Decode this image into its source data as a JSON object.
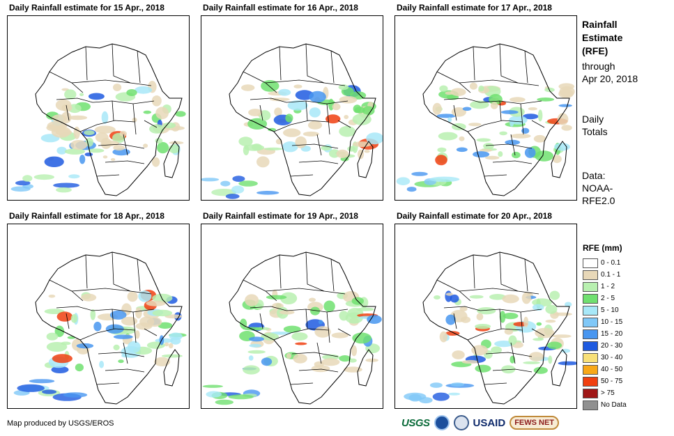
{
  "panels": [
    {
      "title": "Daily Rainfall estimate for 15 Apr., 2018",
      "seed": 15
    },
    {
      "title": "Daily Rainfall estimate for 16 Apr., 2018",
      "seed": 16
    },
    {
      "title": "Daily Rainfall estimate for 17 Apr., 2018",
      "seed": 17
    },
    {
      "title": "Daily Rainfall estimate for 18 Apr., 2018",
      "seed": 18
    },
    {
      "title": "Daily Rainfall estimate for 19 Apr., 2018",
      "seed": 19
    },
    {
      "title": "Daily Rainfall estimate for 20 Apr., 2018",
      "seed": 20
    }
  ],
  "side": {
    "title_line1": "Rainfall",
    "title_line2": "Estimate",
    "title_line3": "(RFE)",
    "through_line1": "through",
    "through_line2": "Apr 20, 2018",
    "totals_line1": "Daily",
    "totals_line2": "Totals",
    "data_line1": "Data:",
    "data_line2": "NOAA-",
    "data_line3": "RFE2.0"
  },
  "legend": {
    "title": "RFE (mm)",
    "items": [
      {
        "label": "0 - 0.1",
        "color": "#ffffff"
      },
      {
        "label": "0.1 - 1",
        "color": "#e8d8b8"
      },
      {
        "label": "1 - 2",
        "color": "#b8f0b0"
      },
      {
        "label": "2 - 5",
        "color": "#70e070"
      },
      {
        "label": "5 - 10",
        "color": "#a8e8f8"
      },
      {
        "label": "10 - 15",
        "color": "#80c8f8"
      },
      {
        "label": "15 - 20",
        "color": "#4896f0"
      },
      {
        "label": "20 - 30",
        "color": "#1e5ae0"
      },
      {
        "label": "30 - 40",
        "color": "#f8e078"
      },
      {
        "label": "40 - 50",
        "color": "#f8a818"
      },
      {
        "label": "50 - 75",
        "color": "#f04010"
      },
      {
        "label": "> 75",
        "color": "#a01818"
      },
      {
        "label": "No Data",
        "color": "#909090"
      }
    ]
  },
  "credit": "Map produced by USGS/EROS",
  "logos": {
    "usgs": "USGS",
    "usaid": "USAID",
    "fews": "FEWS NET",
    "usgs_icon": "usgs-logo-icon",
    "noaa_icon": "noaa-logo-icon",
    "seal_icon": "us-seal-icon",
    "fews_icon": "fews-net-logo-icon"
  }
}
